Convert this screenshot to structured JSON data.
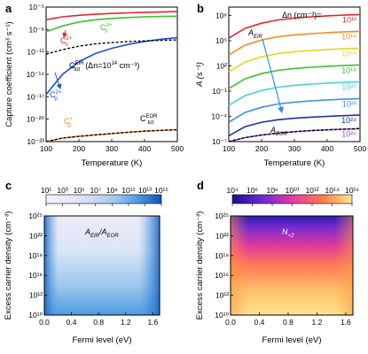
{
  "panels": {
    "a": "a",
    "b": "b",
    "c": "c",
    "d": "d"
  },
  "chart_data": [
    {
      "id": "a",
      "type": "line",
      "xlabel": "Temperature (K)",
      "ylabel": "Capture coefficient (cm³ s⁻¹)",
      "xlim": [
        100,
        500
      ],
      "ylim": [
        1e-23,
        1e-05
      ],
      "yscale": "log",
      "xticks": [
        100,
        200,
        300,
        400,
        500
      ],
      "yticks": [
        {
          "v": 1e-05,
          "label": "10⁻⁵"
        },
        {
          "v": 1e-08,
          "label": "10⁻⁸"
        },
        {
          "v": 1e-11,
          "label": "10⁻¹¹"
        },
        {
          "v": 1e-14,
          "label": "10⁻¹⁴"
        },
        {
          "v": 1e-17,
          "label": "10⁻¹⁷"
        },
        {
          "v": 1e-20,
          "label": "10⁻²⁰"
        },
        {
          "v": 1e-23,
          "label": "10⁻²³"
        }
      ],
      "x": [
        100,
        150,
        200,
        250,
        300,
        350,
        400,
        450,
        500
      ],
      "series": [
        {
          "name": "Cₙ²⁺",
          "color": "#e8242a",
          "dash": false,
          "values": [
            2e-07,
            5e-07,
            8e-07,
            1.1e-06,
            1.4e-06,
            1.7e-06,
            2e-06,
            2.2e-06,
            2.5e-06
          ]
        },
        {
          "name": "Cₙ³⁺",
          "color": "#3cbf2e",
          "dash": false,
          "values": [
            5e-09,
            3e-08,
            1e-07,
            2e-07,
            3e-07,
            4e-07,
            5e-07,
            5.5e-07,
            6e-07
          ]
        },
        {
          "name": "Cₚ²⁺",
          "color": "#1d4fd8",
          "dash": false,
          "values": [
            2e-17,
            1e-14,
            5e-13,
            6e-12,
            3e-11,
            1e-10,
            2.5e-10,
            5e-10,
            8e-10
          ]
        },
        {
          "name": "Cₚ⁺",
          "color": "#f58b1e",
          "dash": false,
          "values": [
            1e-23,
            3e-23,
            5e-23,
            8e-23,
            1.2e-22,
            1.8e-22,
            2.5e-22,
            3.2e-22,
            4e-22
          ]
        },
        {
          "name": "C_tot^EIR",
          "color": "#000000",
          "dash": true,
          "values": [
            5e-12,
            2e-11,
            6e-11,
            1.2e-10,
            1.8e-10,
            2.4e-10,
            3e-10,
            3.5e-10,
            4e-10
          ]
        },
        {
          "name": "C_tot^EOR",
          "color": "#000000",
          "dash": true,
          "values": [
            1e-23,
            3e-23,
            5e-23,
            8e-23,
            1.2e-22,
            1.8e-22,
            2.5e-22,
            3.2e-22,
            4e-22
          ]
        }
      ],
      "labels": {
        "cn2": "C",
        "cn2_sup": "2+",
        "cn2_sub": "n",
        "cn3": "C",
        "cn3_sup": "3+",
        "cn3_sub": "n",
        "cp2": "C",
        "cp2_sup": "2+",
        "cp2_sub": "p",
        "cp1": "C",
        "cp1_sup": "+",
        "cp1_sub": "p",
        "ceir": "C",
        "ceir_sup": "EIR",
        "ceir_sub": "tot",
        "ceir_note": "(Δn=10",
        "ceir_note_sup": "14",
        "ceir_note_end": " cm⁻³)",
        "ceor": "C",
        "ceor_sup": "EOR",
        "ceor_sub": "tot"
      }
    },
    {
      "id": "b",
      "type": "line",
      "xlabel": "Temperature (K)",
      "ylabel": "A (s⁻¹)",
      "xlim": [
        100,
        500
      ],
      "ylim": [
        1e-07,
        1000000000.0
      ],
      "yscale": "log",
      "xticks": [
        100,
        200,
        300,
        400,
        500
      ],
      "yticks": [
        {
          "v": 100000000.0,
          "label": "10⁸"
        },
        {
          "v": 100000.0,
          "label": "10⁵"
        },
        {
          "v": 100.0,
          "label": "10²"
        },
        {
          "v": 0.1,
          "label": "10⁻¹"
        },
        {
          "v": 0.0001,
          "label": "10⁻⁴"
        },
        {
          "v": 1e-07,
          "label": "10⁻⁷"
        }
      ],
      "legend_title": "Δn (cm⁻³)=",
      "annotations": {
        "eir": "A",
        "eir_sub": "EIR",
        "eor": "A",
        "eor_sub": "EOR"
      },
      "x": [
        100,
        150,
        200,
        250,
        300,
        350,
        400,
        450,
        500
      ],
      "series": [
        {
          "name": "10¹²",
          "color": "#e8242a",
          "values": [
            200000.0,
            3000000.0,
            12000000.0,
            30000000.0,
            50000000.0,
            70000000.0,
            90000000.0,
            110000000.0,
            130000000.0
          ]
        },
        {
          "name": "10¹⁴",
          "color": "#f58b1e",
          "values": [
            2000.0,
            30000.0,
            120000.0,
            300000.0,
            500000.0,
            700000.0,
            900000.0,
            1100000.0,
            1300000.0
          ]
        },
        {
          "name": "10¹⁶",
          "color": "#e9d51c",
          "values": [
            20,
            300,
            1200,
            3000,
            5000,
            7000,
            9000,
            11000,
            13000
          ]
        },
        {
          "name": "10¹⁸",
          "color": "#3cbf2e",
          "values": [
            0.2,
            3,
            12,
            30,
            50,
            70,
            90,
            110,
            130
          ]
        },
        {
          "name": "10²⁰",
          "color": "#41d6cf",
          "values": [
            0.002,
            0.03,
            0.12,
            0.3,
            0.5,
            0.7,
            0.9,
            1.1,
            1.3
          ]
        },
        {
          "name": "10²²",
          "color": "#3a8ef0",
          "values": [
            2e-05,
            0.0003,
            0.0012,
            0.003,
            0.005,
            0.007,
            0.009,
            0.011,
            0.013
          ]
        },
        {
          "name": "10²⁴",
          "color": "#1d2fa6",
          "values": [
            5e-07,
            6e-06,
            2e-05,
            4e-05,
            6e-05,
            8e-05,
            0.0001,
            0.00012,
            0.00014
          ]
        },
        {
          "name": "10²⁶",
          "color": "#9a4bd6",
          "values": [
            1e-07,
            3e-07,
            6e-07,
            1e-06,
            1.5e-06,
            2e-06,
            2.5e-06,
            3e-06,
            3.5e-06
          ]
        },
        {
          "name": "A_EOR",
          "color": "#000000",
          "dash": true,
          "values": [
            1e-07,
            3e-07,
            6e-07,
            1e-06,
            1.5e-06,
            2e-06,
            2.5e-06,
            3e-06,
            3.5e-06
          ]
        }
      ]
    },
    {
      "id": "c",
      "type": "heatmap",
      "title": "A",
      "title_sub_1": "EIR",
      "title_mid": "/A",
      "title_sub_2": "EOR",
      "xlabel": "Fermi level (eV)",
      "ylabel": "Excess carrier density (cm⁻³)",
      "xlim": [
        0.0,
        1.7
      ],
      "ylim": [
        10000000000.0,
        1e+25
      ],
      "xticks": [
        "0.0",
        "0.4",
        "0.8",
        "1.2",
        "1.6"
      ],
      "xtick_values": [
        0.0,
        0.4,
        0.8,
        1.2,
        1.6
      ],
      "yticks": [
        {
          "v": 1e+25,
          "label": "10²⁵"
        },
        {
          "v": 1e+22,
          "label": "10²²"
        },
        {
          "v": 1e+19,
          "label": "10¹⁹"
        },
        {
          "v": 1e+16,
          "label": "10¹⁶"
        },
        {
          "v": 10000000000000.0,
          "label": "10¹³"
        },
        {
          "v": 10000000000.0,
          "label": "10¹⁰"
        }
      ],
      "colorbar_ticks": [
        "10¹",
        "10³",
        "10⁵",
        "10⁷",
        "10⁹",
        "10¹¹",
        "10¹³",
        "10¹⁵"
      ],
      "colors": [
        "#f4f4fb",
        "#e6e4f6",
        "#c9dff5",
        "#8fc3ec",
        "#4c9be0",
        "#1d66c4"
      ]
    },
    {
      "id": "d",
      "type": "heatmap",
      "title": "N",
      "title_sub": "+2",
      "xlabel": "Fermi level (eV)",
      "ylabel": "Excess carrier density (cm⁻³)",
      "xlim": [
        0.0,
        1.7
      ],
      "ylim": [
        10000000000.0,
        1e+25
      ],
      "xticks": [
        "0.0",
        "0.4",
        "0.8",
        "1.2",
        "1.6"
      ],
      "xtick_values": [
        0.0,
        0.4,
        0.8,
        1.2,
        1.6
      ],
      "yticks": [
        {
          "v": 1e+25,
          "label": "10²⁵"
        },
        {
          "v": 1e+22,
          "label": "10²²"
        },
        {
          "v": 1e+19,
          "label": "10¹⁹"
        },
        {
          "v": 1e+16,
          "label": "10¹⁶"
        },
        {
          "v": 10000000000000.0,
          "label": "10¹³"
        },
        {
          "v": 10000000000.0,
          "label": "10¹⁰"
        }
      ],
      "colorbar_ticks": [
        "10⁴",
        "10⁶",
        "10⁸",
        "10¹⁰",
        "10¹²",
        "10¹⁴",
        "10¹⁶"
      ],
      "colors": [
        "#1a0f8f",
        "#5b2bd1",
        "#d63bb8",
        "#ff5a6c",
        "#ff9a3c",
        "#ffe07a"
      ]
    }
  ]
}
